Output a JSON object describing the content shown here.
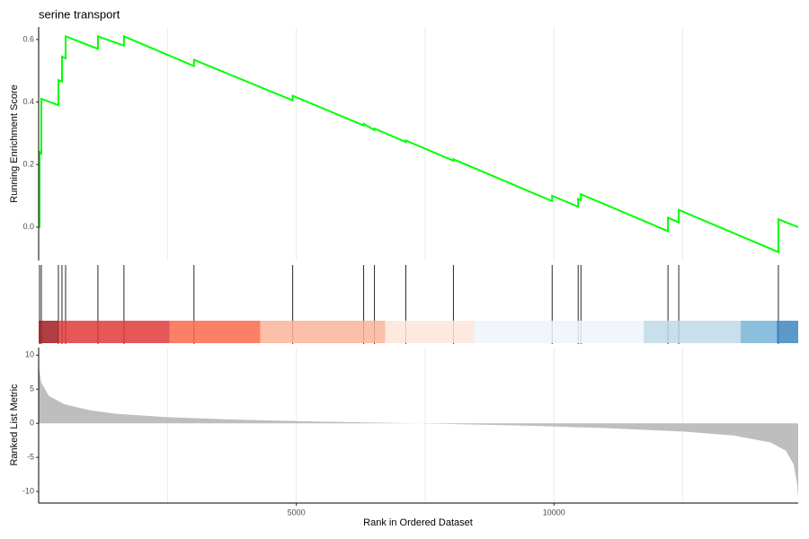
{
  "chart_data": [
    {
      "type": "line",
      "title": "serine transport",
      "y_label": "Running Enrichment Score",
      "color": "#00ff00",
      "x": [
        0,
        17,
        17,
        52,
        52,
        383,
        383,
        453,
        453,
        523,
        523,
        1150,
        1150,
        1655,
        1655,
        3014,
        3014,
        4930,
        4930,
        6307,
        6307,
        6516,
        6516,
        7125,
        7125,
        8049,
        8049,
        9965,
        9965,
        10470,
        10470,
        10523,
        10523,
        12213,
        12213,
        12422,
        12422,
        14355,
        14355,
        14740
      ],
      "values": [
        0,
        0,
        0.24,
        0.235,
        0.41,
        0.39,
        0.47,
        0.465,
        0.545,
        0.54,
        0.61,
        0.57,
        0.61,
        0.58,
        0.61,
        0.515,
        0.535,
        0.405,
        0.42,
        0.325,
        0.33,
        0.31,
        0.315,
        0.272,
        0.277,
        0.212,
        0.217,
        0.083,
        0.1,
        0.065,
        0.09,
        0.086,
        0.105,
        -0.013,
        0.03,
        0.015,
        0.055,
        -0.08,
        0.025,
        0
      ],
      "xlim": [
        0,
        14740
      ],
      "ylim": [
        -0.107,
        0.64
      ],
      "yticks": [
        {
          "value": 0,
          "label": "0.0"
        },
        0.2,
        0.4,
        0.6
      ],
      "xgrid": [
        2500,
        5000,
        7500,
        10000,
        12500
      ]
    },
    {
      "type": "rug",
      "color": "#000000",
      "xlim": [
        0,
        14740
      ],
      "x": [
        17,
        52,
        383,
        453,
        523,
        1150,
        1655,
        3014,
        4930,
        6307,
        6516,
        7125,
        8049,
        9965,
        10470,
        10523,
        12213,
        12422,
        14355
      ]
    },
    {
      "type": "colorbar",
      "xlim": [
        0,
        14740
      ],
      "bins": [
        0,
        383,
        2544,
        4303,
        6725,
        8449,
        11742,
        13624,
        14321,
        14740
      ],
      "colors": [
        "#a11d21",
        "#e03b3b",
        "#fb6a4a",
        "#fcb49b",
        "#fee5d9",
        "#eff3fb",
        "#c0d9e7",
        "#78b4d8",
        "#3d87c0"
      ]
    },
    {
      "type": "area",
      "y_label": "Ranked List Metric",
      "x_label": "Rank in Ordered Dataset",
      "color": "#bebebe",
      "x": [
        0,
        50,
        200,
        500,
        1000,
        1500,
        2500,
        4000,
        5500,
        7000,
        8000,
        9500,
        11000,
        12500,
        13500,
        14200,
        14500,
        14650,
        14720,
        14740
      ],
      "values": [
        8.5,
        6,
        4,
        2.8,
        1.9,
        1.4,
        0.9,
        0.5,
        0.25,
        0.05,
        -0.1,
        -0.35,
        -0.7,
        -1.2,
        -1.8,
        -2.8,
        -4,
        -6,
        -9,
        -10.9
      ],
      "xlim": [
        0,
        14740
      ],
      "ylim": [
        -11.7,
        11.1
      ],
      "yticks": [
        10,
        5,
        0,
        -5,
        -10
      ],
      "xticks": [
        5000,
        10000
      ],
      "xgrid": [
        2500,
        5000,
        7500,
        10000,
        12500
      ]
    }
  ]
}
